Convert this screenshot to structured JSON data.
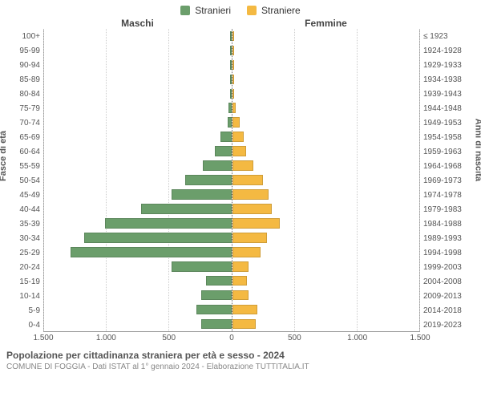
{
  "legend": {
    "male": {
      "label": "Stranieri",
      "color": "#6b9e6b"
    },
    "female": {
      "label": "Straniere",
      "color": "#f4b942"
    }
  },
  "header": {
    "male": "Maschi",
    "female": "Femmine"
  },
  "axis": {
    "left_title": "Fasce di età",
    "right_title": "Anni di nascita",
    "xmax": 1500,
    "xticks": [
      0,
      500,
      1000,
      1500
    ],
    "xtick_labels": [
      "0",
      "500",
      "1.000",
      "1.500"
    ]
  },
  "style": {
    "male_bar_color": "#6b9e6b",
    "female_bar_color": "#f4b942",
    "grid_color": "#cccccc",
    "background": "#ffffff"
  },
  "age_groups": [
    "100+",
    "95-99",
    "90-94",
    "85-89",
    "80-84",
    "75-79",
    "70-74",
    "65-69",
    "60-64",
    "55-59",
    "50-54",
    "45-49",
    "40-44",
    "35-39",
    "30-34",
    "25-29",
    "20-24",
    "15-19",
    "10-14",
    "5-9",
    "0-4"
  ],
  "birth_years": [
    "≤ 1923",
    "1924-1928",
    "1929-1933",
    "1934-1938",
    "1939-1943",
    "1944-1948",
    "1949-1953",
    "1954-1958",
    "1959-1963",
    "1964-1968",
    "1969-1973",
    "1974-1978",
    "1979-1983",
    "1984-1988",
    "1989-1993",
    "1994-1998",
    "1999-2003",
    "2004-2008",
    "2009-2013",
    "2014-2018",
    "2019-2023"
  ],
  "male_values": [
    0,
    0,
    0,
    0,
    0,
    20,
    30,
    90,
    130,
    230,
    370,
    480,
    720,
    1010,
    1180,
    1290,
    480,
    200,
    240,
    280,
    240
  ],
  "female_values": [
    0,
    0,
    0,
    0,
    0,
    30,
    60,
    90,
    110,
    170,
    250,
    290,
    320,
    380,
    280,
    230,
    130,
    120,
    130,
    200,
    190
  ],
  "footer": {
    "title": "Popolazione per cittadinanza straniera per età e sesso - 2024",
    "sub": "COMUNE DI FOGGIA - Dati ISTAT al 1° gennaio 2024 - Elaborazione TUTTITALIA.IT"
  }
}
